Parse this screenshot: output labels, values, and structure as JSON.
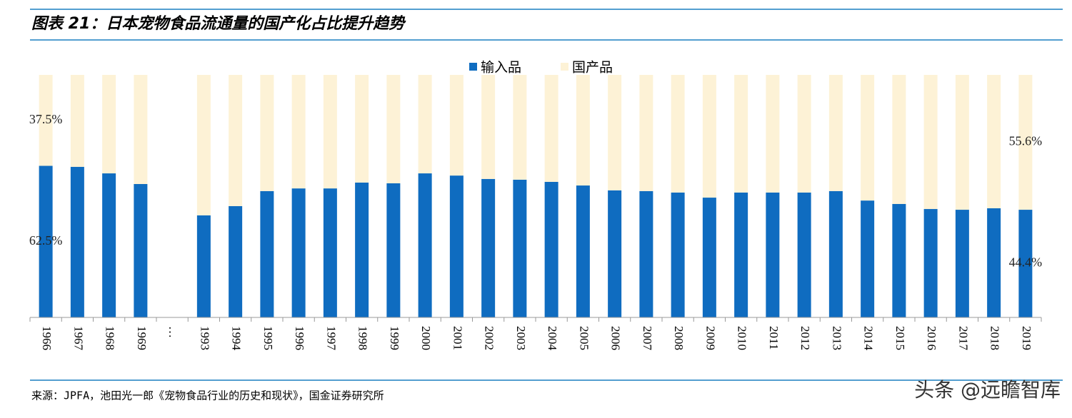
{
  "chart_data": {
    "type": "stacked_bar",
    "title": "图表 21：日本宠物食品流通量的国产化占比提升趋势",
    "source": "来源：JPFA，池田光一郎《宠物食品行业的历史和现状》，国金证券研究所",
    "watermark": "头条 @远瞻智库",
    "categories": [
      "1966",
      "1967",
      "1968",
      "1969",
      "…",
      "1993",
      "1994",
      "1995",
      "1996",
      "1997",
      "1998",
      "1999",
      "2000",
      "2001",
      "2002",
      "2003",
      "2004",
      "2005",
      "2006",
      "2007",
      "2008",
      "2009",
      "2010",
      "2011",
      "2012",
      "2013",
      "2014",
      "2015",
      "2016",
      "2017",
      "2018",
      "2019"
    ],
    "series": [
      {
        "name": "输入品",
        "color": "#0f6cc0",
        "values": [
          62.5,
          62.1,
          59.4,
          55.0,
          null,
          42.1,
          45.9,
          52.1,
          53.2,
          53.2,
          55.6,
          55.3,
          59.4,
          58.5,
          57.1,
          56.8,
          55.9,
          54.4,
          52.4,
          52.1,
          51.5,
          49.4,
          51.5,
          51.5,
          51.5,
          52.1,
          48.2,
          46.8,
          44.7,
          44.4,
          45.0,
          44.4
        ],
        "value_labels": [
          "62.5%",
          null,
          null,
          null,
          null,
          null,
          null,
          null,
          null,
          null,
          null,
          null,
          null,
          null,
          null,
          null,
          null,
          null,
          null,
          null,
          null,
          null,
          null,
          null,
          null,
          null,
          null,
          null,
          null,
          null,
          null,
          "44.4%"
        ]
      },
      {
        "name": "国产品",
        "color": "#fdf2d6",
        "values": [
          37.5,
          37.9,
          40.6,
          45.0,
          null,
          57.9,
          54.1,
          47.9,
          46.8,
          46.8,
          44.4,
          44.7,
          40.6,
          41.5,
          42.9,
          43.2,
          44.1,
          45.6,
          47.6,
          47.9,
          48.5,
          50.6,
          48.5,
          48.5,
          48.5,
          47.9,
          51.8,
          53.2,
          55.3,
          55.6,
          55.0,
          55.6
        ],
        "value_labels": [
          "37.5%",
          null,
          null,
          null,
          null,
          null,
          null,
          null,
          null,
          null,
          null,
          null,
          null,
          null,
          null,
          null,
          null,
          null,
          null,
          null,
          null,
          null,
          null,
          null,
          null,
          null,
          null,
          null,
          null,
          null,
          null,
          "55.6%"
        ]
      }
    ],
    "ylim": [
      0,
      100
    ],
    "legend": "top"
  }
}
